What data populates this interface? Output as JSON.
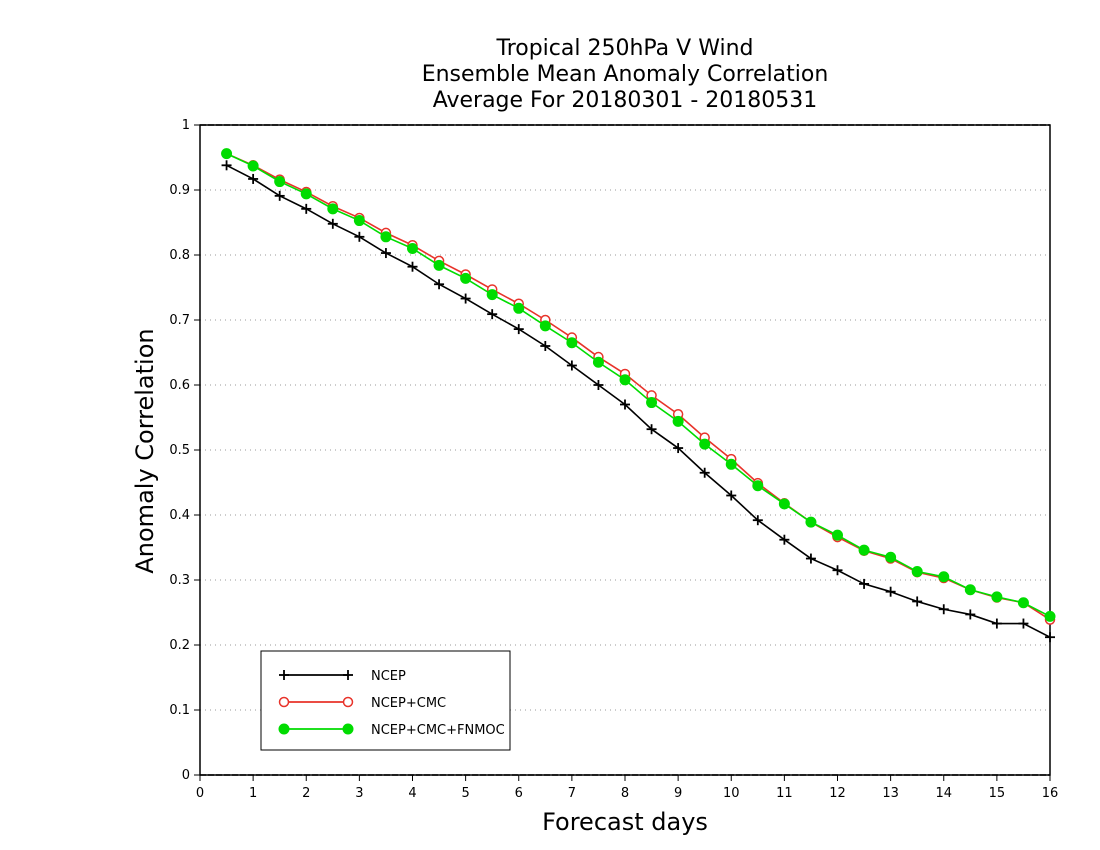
{
  "chart_data": {
    "type": "line",
    "title_lines": [
      "Tropical 250hPa V Wind",
      "Ensemble Mean Anomaly Correlation",
      "Average For 20180301 - 20180531"
    ],
    "xlabel": "Forecast days",
    "ylabel": "Anomaly Correlation",
    "xlim": [
      0,
      16
    ],
    "ylim": [
      0,
      1
    ],
    "x_ticks": [
      0,
      1,
      2,
      3,
      4,
      5,
      6,
      7,
      8,
      9,
      10,
      11,
      12,
      13,
      14,
      15,
      16
    ],
    "y_ticks": [
      0,
      0.1,
      0.2,
      0.3,
      0.4,
      0.5,
      0.6,
      0.7,
      0.8,
      0.9,
      1
    ],
    "y_tick_labels": [
      "0",
      "0.1",
      "0.2",
      "0.3",
      "0.4",
      "0.5",
      "0.6",
      "0.7",
      "0.8",
      "0.9",
      "1"
    ],
    "x_tick_labels": [
      "0",
      "1",
      "2",
      "3",
      "4",
      "5",
      "6",
      "7",
      "8",
      "9",
      "10",
      "11",
      "12",
      "13",
      "14",
      "15",
      "16"
    ],
    "grid": "horizontal dotted",
    "legend_position": "bottom-left",
    "x": [
      0.5,
      1,
      1.5,
      2,
      2.5,
      3,
      3.5,
      4,
      4.5,
      5,
      5.5,
      6,
      6.5,
      7,
      7.5,
      8,
      8.5,
      9,
      9.5,
      10,
      10.5,
      11,
      11.5,
      12,
      12.5,
      13,
      13.5,
      14,
      14.5,
      15,
      15.5,
      16
    ],
    "series": [
      {
        "name": "NCEP",
        "color": "#000000",
        "marker": "plus",
        "values": [
          0.938,
          0.917,
          0.891,
          0.871,
          0.848,
          0.828,
          0.803,
          0.782,
          0.755,
          0.733,
          0.709,
          0.686,
          0.66,
          0.63,
          0.6,
          0.57,
          0.532,
          0.503,
          0.465,
          0.43,
          0.392,
          0.362,
          0.333,
          0.315,
          0.294,
          0.282,
          0.267,
          0.255,
          0.247,
          0.233,
          0.233,
          0.212
        ]
      },
      {
        "name": "NCEP+CMC",
        "color": "#e8332a",
        "marker": "open-circle",
        "values": [
          0.956,
          0.938,
          0.916,
          0.897,
          0.875,
          0.857,
          0.834,
          0.815,
          0.791,
          0.77,
          0.747,
          0.725,
          0.7,
          0.673,
          0.643,
          0.617,
          0.584,
          0.555,
          0.519,
          0.486,
          0.449,
          0.418,
          0.389,
          0.366,
          0.345,
          0.333,
          0.312,
          0.303,
          0.285,
          0.273,
          0.265,
          0.239
        ]
      },
      {
        "name": "NCEP+CMC+FNMOC",
        "color": "#00dc00",
        "marker": "filled-circle",
        "values": [
          0.956,
          0.937,
          0.913,
          0.894,
          0.871,
          0.853,
          0.828,
          0.81,
          0.784,
          0.764,
          0.739,
          0.718,
          0.691,
          0.665,
          0.635,
          0.608,
          0.573,
          0.544,
          0.509,
          0.478,
          0.445,
          0.417,
          0.389,
          0.369,
          0.346,
          0.335,
          0.313,
          0.305,
          0.285,
          0.274,
          0.265,
          0.244
        ]
      }
    ]
  }
}
